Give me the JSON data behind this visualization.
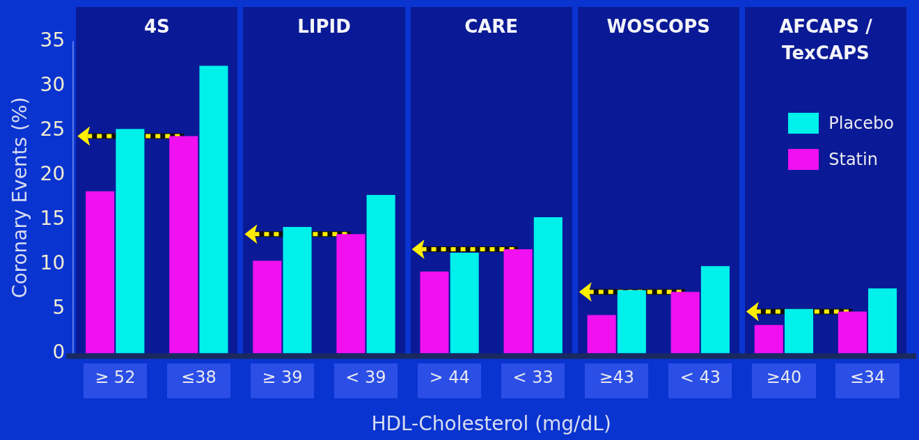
{
  "chart_data": {
    "type": "bar",
    "ylabel": "Coronary Events (%)",
    "xlabel": "HDL-Cholesterol (mg/dL)",
    "categories": [
      "≥ 52",
      "≤38",
      "≥ 39",
      "< 39",
      "> 44",
      "< 33",
      "≥43",
      "< 43",
      "≥40",
      "≤34"
    ],
    "series": [
      {
        "name": "Statin",
        "color": "#f010f0",
        "values": [
          18.2,
          24.4,
          10.4,
          13.4,
          9.2,
          11.7,
          4.3,
          6.9,
          3.2,
          4.7
        ]
      },
      {
        "name": "Placebo",
        "color": "#00f0ec",
        "values": [
          25.2,
          32.3,
          14.2,
          17.8,
          11.3,
          15.3,
          7.1,
          9.8,
          5.0,
          7.3
        ]
      }
    ],
    "annotations": [
      "4S",
      "LIPID",
      "CARE",
      "WOSCOPS",
      "AFCAPS /\nTexCAPS"
    ],
    "ylim": [
      0,
      35
    ],
    "yticks": [
      0,
      5,
      10,
      15,
      20,
      25,
      30,
      35
    ],
    "grid": false,
    "legend": "top right"
  }
}
